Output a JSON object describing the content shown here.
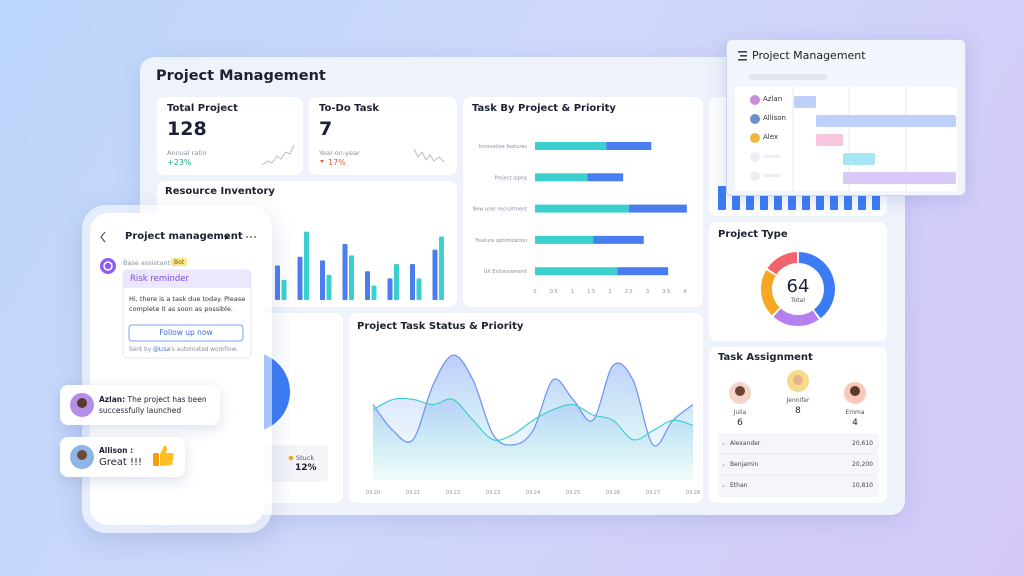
{
  "header": {
    "title": "Project Management"
  },
  "total_project": {
    "title": "Total Project",
    "value": 128,
    "caption": "Annual ratio",
    "change": "+23%"
  },
  "todo_task": {
    "title": "To-Do Task",
    "value": 7,
    "caption": "Year-on-year",
    "change": "17%"
  },
  "resource_inventory": {
    "title": "Resource Inventory",
    "chart": {
      "type": "bar",
      "ylim": [
        0,
        100
      ],
      "series": [
        {
          "color": "#4a7ef0",
          "values": [
            48,
            60,
            55,
            78,
            40,
            30,
            50,
            70
          ]
        },
        {
          "color": "#3ccfcf",
          "values": [
            28,
            95,
            35,
            62,
            20,
            50,
            30,
            88
          ]
        }
      ]
    }
  },
  "task_by_project": {
    "title": "Task By Project & Priority",
    "chart": {
      "type": "bar",
      "orientation": "horizontal",
      "stacked": true,
      "categories": [
        "Innovative features",
        "Project alpha",
        "New user recruitment",
        "Feature optimization",
        "UX Enhancement"
      ],
      "series": [
        {
          "color": "#3ccfcf",
          "values": [
            1.9,
            1.4,
            2.5,
            1.55,
            2.2
          ]
        },
        {
          "color": "#4a7ef0",
          "values": [
            1.2,
            0.95,
            1.55,
            1.35,
            1.35
          ]
        }
      ],
      "xlim": [
        0,
        4
      ],
      "xticks": [
        0,
        0.5,
        1,
        1.5,
        2,
        2.5,
        3,
        3.5,
        4
      ]
    }
  },
  "status_card": {
    "label": "Stuck",
    "value": "12%"
  },
  "task_status": {
    "title": "Project Task Status & Priority",
    "chart": {
      "type": "area",
      "ylim": [
        0,
        100
      ],
      "categories": [
        "03.20",
        null,
        "03.21",
        null,
        "03.22",
        null,
        "03.23",
        null,
        "03.24",
        null,
        "03.25",
        null,
        "03.26",
        null,
        "03.27",
        null,
        "03.28"
      ],
      "series": [
        {
          "color": "#6f8ff5",
          "values": [
            58,
            38,
            31,
            73,
            96,
            77,
            35,
            27,
            38,
            77,
            62,
            46,
            88,
            77,
            27,
            46,
            58
          ]
        },
        {
          "color": "#3ccfcf",
          "values": [
            54,
            62,
            62,
            58,
            62,
            46,
            31,
            35,
            46,
            54,
            58,
            50,
            46,
            31,
            38,
            46,
            42
          ]
        }
      ]
    }
  },
  "project_type": {
    "title": "Project Type",
    "chart": {
      "type": "pie",
      "donut": true,
      "values": [
        40,
        22,
        22,
        16
      ],
      "colors": [
        "#3b7cf4",
        "#b57ff0",
        "#f7a823",
        "#f2636b"
      ],
      "center_value": 64,
      "center_label": "Total"
    }
  },
  "task_assignment": {
    "title": "Task Assignment",
    "people": [
      {
        "name": "Julia",
        "count": 6
      },
      {
        "name": "Jennifer",
        "count": 8
      },
      {
        "name": "Emma",
        "count": 4
      }
    ],
    "table": {
      "rows": [
        [
          "Alexander",
          "20,610"
        ],
        [
          "Benjamin",
          "20,200"
        ],
        [
          "Ethan",
          "10,810"
        ]
      ]
    }
  },
  "gantt": {
    "title": "Project Management",
    "people": [
      "Azlan",
      "Allison",
      "Alex"
    ]
  },
  "phone": {
    "title": "Project management",
    "assistant": "Base assistant",
    "badge": "Bot",
    "card": {
      "title": "Risk reminder",
      "message": "Hi, there is a task due today. Please complete it as soon as possible.",
      "button": "Follow up now",
      "footer_prefix": "Sent by ",
      "mention": "@Lisa",
      "footer_suffix": "'s automated workflow."
    }
  },
  "chat": [
    {
      "name": "Azlan:",
      "message": "The project has been successfully launched"
    },
    {
      "name": "Allison :",
      "message": "Great !!!"
    }
  ]
}
